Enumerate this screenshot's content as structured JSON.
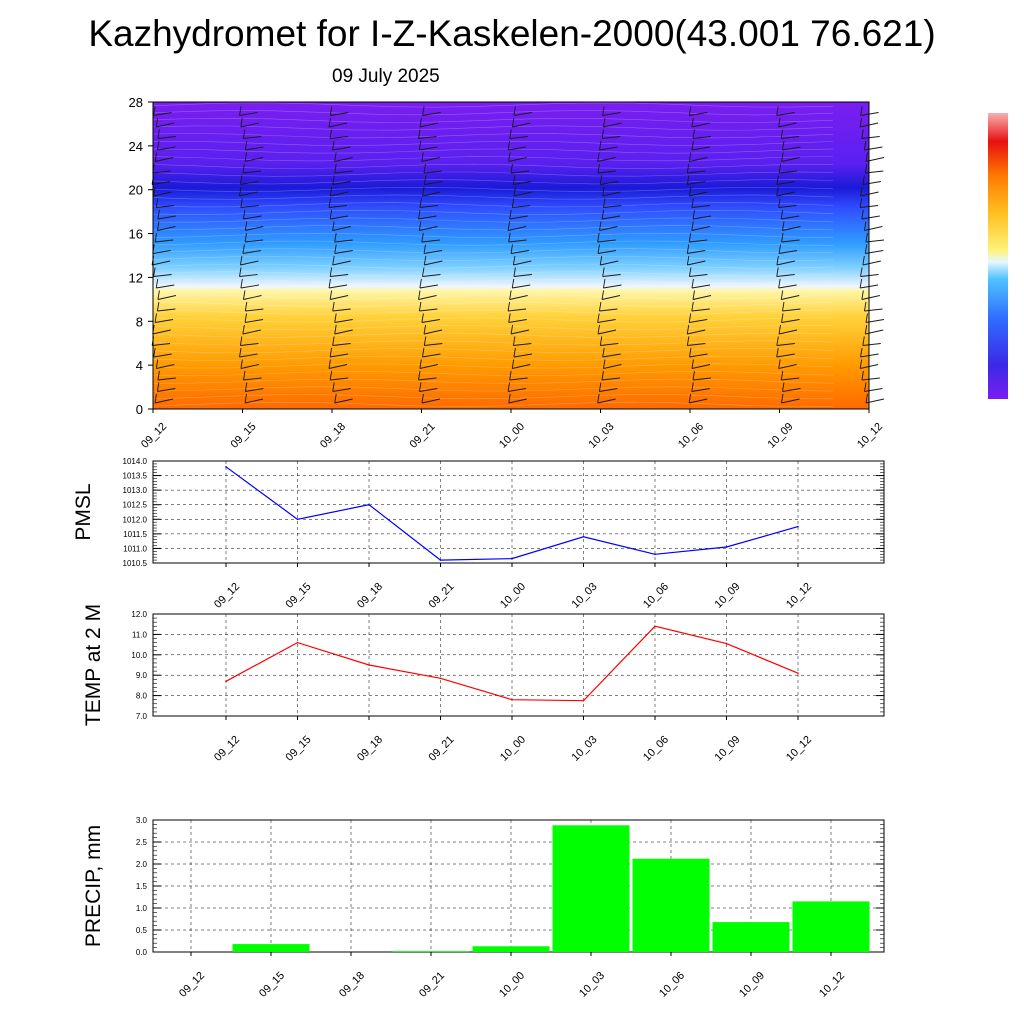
{
  "header": {
    "title": "Kazhydromet for I-Z-Kaskelen-2000(43.001 76.621)",
    "date": "09 July 2025"
  },
  "chart_data": [
    {
      "type": "heatmap",
      "title": "",
      "xlabel": "",
      "ylabel": "",
      "x_tick_labels": [
        "09_12",
        "09_15",
        "09_18",
        "09_21",
        "10_00",
        "10_03",
        "10_06",
        "10_09",
        "10_12"
      ],
      "y_tick_labels": [
        "0",
        "4",
        "8",
        "12",
        "16",
        "20",
        "24",
        "28"
      ],
      "ylim": [
        0,
        28
      ],
      "colorbar": "blue-cyan-white-yellow-orange-red",
      "note_overlay": "wind barbs"
    },
    {
      "type": "line",
      "ylabel": "PMSL",
      "categories": [
        "09_12",
        "09_15",
        "09_18",
        "09_21",
        "10_00",
        "10_03",
        "10_06",
        "10_09",
        "10_12"
      ],
      "values": [
        1013.8,
        1012.0,
        1012.5,
        1010.6,
        1010.65,
        1011.4,
        1010.8,
        1011.05,
        1011.75
      ],
      "ylim": [
        1010.5,
        1014.0
      ],
      "y_ticks": [
        "1010.5",
        "1011.0",
        "1011.5",
        "1012.0",
        "1012.5",
        "1013.0",
        "1013.5",
        "1014.0"
      ],
      "color": "#0000ff",
      "grid": true
    },
    {
      "type": "line",
      "ylabel": "TEMP at 2 M",
      "categories": [
        "09_12",
        "09_15",
        "09_18",
        "09_21",
        "10_00",
        "10_03",
        "10_06",
        "10_09",
        "10_12"
      ],
      "values": [
        8.7,
        10.6,
        9.5,
        8.85,
        7.8,
        7.75,
        11.4,
        10.55,
        9.1
      ],
      "ylim": [
        7.0,
        12.0
      ],
      "y_ticks": [
        "7.0",
        "8.0",
        "9.0",
        "10.0",
        "11.0",
        "12.0"
      ],
      "color": "#ff0000",
      "grid": true
    },
    {
      "type": "bar",
      "ylabel": "PRECIP, mm",
      "categories": [
        "09_12",
        "09_15",
        "09_18",
        "09_21",
        "10_00",
        "10_03",
        "10_06",
        "10_09",
        "10_12"
      ],
      "values": [
        0.0,
        0.18,
        0.0,
        0.02,
        0.13,
        2.88,
        2.12,
        0.68,
        1.15
      ],
      "ylim": [
        0.0,
        3.0
      ],
      "y_ticks": [
        "0.0",
        "0.5",
        "1.0",
        "1.5",
        "2.0",
        "2.5",
        "3.0"
      ],
      "color": "#00ff00",
      "grid": true
    }
  ]
}
